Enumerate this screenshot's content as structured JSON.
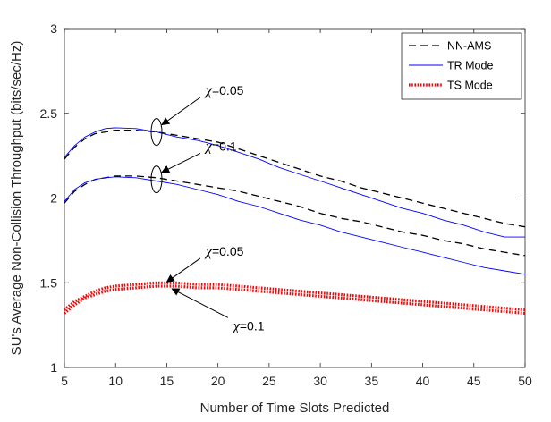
{
  "chart_data": {
    "type": "line",
    "title": "",
    "xlabel": "Number of Time Slots Predicted",
    "ylabel": "SU's Average Non-Collision Throughput (bits/sec/Hz)",
    "xlim": [
      5,
      50
    ],
    "ylim": [
      1,
      3
    ],
    "xticks": [
      "5",
      "10",
      "15",
      "20",
      "25",
      "30",
      "35",
      "40",
      "45",
      "50"
    ],
    "yticks": [
      "1",
      "1.5",
      "2",
      "2.5",
      "3"
    ],
    "grid": false,
    "legend_position": "top-right",
    "legend": [
      {
        "label": "NN-AMS",
        "color": "#000000",
        "style": "dashed"
      },
      {
        "label": "TR Mode",
        "color": "#0000ff",
        "style": "solid"
      },
      {
        "label": "TS Mode",
        "color": "#ff0000",
        "style": "dotted"
      }
    ],
    "series": [
      {
        "name": "NN-AMS",
        "group": "χ=0.05",
        "color": "#000000",
        "style": "dashed",
        "x": [
          5,
          6,
          7,
          8,
          9,
          10,
          12,
          14,
          15,
          16,
          18,
          20,
          22,
          24,
          26,
          28,
          30,
          32,
          34,
          36,
          38,
          40,
          42,
          44,
          46,
          48,
          50
        ],
        "y": [
          2.23,
          2.3,
          2.35,
          2.38,
          2.39,
          2.4,
          2.4,
          2.39,
          2.38,
          2.37,
          2.35,
          2.33,
          2.29,
          2.25,
          2.21,
          2.17,
          2.13,
          2.1,
          2.06,
          2.03,
          2.0,
          1.97,
          1.94,
          1.91,
          1.88,
          1.85,
          1.83
        ]
      },
      {
        "name": "TR Mode",
        "group": "χ=0.05",
        "color": "#0000ff",
        "style": "solid",
        "x": [
          5,
          6,
          7,
          8,
          9,
          10,
          12,
          14,
          16,
          18,
          20,
          22,
          24,
          26,
          28,
          30,
          32,
          34,
          36,
          38,
          40,
          42,
          44,
          46,
          48,
          50
        ],
        "y": [
          2.24,
          2.31,
          2.36,
          2.39,
          2.41,
          2.415,
          2.41,
          2.39,
          2.36,
          2.34,
          2.31,
          2.27,
          2.23,
          2.18,
          2.14,
          2.1,
          2.06,
          2.02,
          1.98,
          1.94,
          1.91,
          1.87,
          1.84,
          1.8,
          1.77,
          1.77
        ]
      },
      {
        "name": "NN-AMS",
        "group": "χ=0.1",
        "color": "#000000",
        "style": "dashed",
        "x": [
          5,
          6,
          7,
          8,
          9,
          10,
          12,
          14,
          16,
          18,
          20,
          22,
          24,
          26,
          28,
          30,
          32,
          34,
          36,
          38,
          40,
          42,
          44,
          46,
          48,
          50
        ],
        "y": [
          1.97,
          2.04,
          2.08,
          2.11,
          2.12,
          2.13,
          2.13,
          2.12,
          2.1,
          2.08,
          2.06,
          2.04,
          2.01,
          1.98,
          1.95,
          1.91,
          1.88,
          1.86,
          1.83,
          1.8,
          1.78,
          1.75,
          1.73,
          1.7,
          1.68,
          1.66
        ]
      },
      {
        "name": "TR Mode",
        "group": "χ=0.1",
        "color": "#0000ff",
        "style": "solid",
        "x": [
          5,
          6,
          7,
          8,
          9,
          10,
          12,
          14,
          16,
          18,
          20,
          22,
          24,
          26,
          28,
          30,
          32,
          34,
          36,
          38,
          40,
          42,
          44,
          46,
          48,
          50
        ],
        "y": [
          1.98,
          2.05,
          2.09,
          2.11,
          2.12,
          2.125,
          2.12,
          2.1,
          2.08,
          2.05,
          2.02,
          1.98,
          1.95,
          1.91,
          1.87,
          1.84,
          1.8,
          1.77,
          1.74,
          1.71,
          1.68,
          1.65,
          1.62,
          1.59,
          1.57,
          1.55
        ]
      },
      {
        "name": "TS Mode",
        "group": "χ=0.05",
        "color": "#ff0000",
        "style": "dotted",
        "x": [
          5,
          6,
          7,
          8,
          9,
          10,
          12,
          14,
          15,
          16,
          18,
          20,
          22,
          24,
          26,
          28,
          30,
          32,
          34,
          36,
          38,
          40,
          42,
          44,
          46,
          48,
          50
        ],
        "y": [
          1.34,
          1.39,
          1.42,
          1.45,
          1.47,
          1.48,
          1.49,
          1.5,
          1.5,
          1.5,
          1.49,
          1.49,
          1.48,
          1.47,
          1.46,
          1.45,
          1.44,
          1.43,
          1.42,
          1.41,
          1.4,
          1.39,
          1.38,
          1.37,
          1.36,
          1.35,
          1.34
        ]
      },
      {
        "name": "TS Mode",
        "group": "χ=0.1",
        "color": "#ff0000",
        "style": "dotted",
        "x": [
          5,
          6,
          7,
          8,
          9,
          10,
          12,
          14,
          15,
          16,
          18,
          20,
          22,
          24,
          26,
          28,
          30,
          32,
          34,
          36,
          38,
          40,
          42,
          44,
          46,
          48,
          50
        ],
        "y": [
          1.32,
          1.37,
          1.41,
          1.43,
          1.45,
          1.46,
          1.47,
          1.48,
          1.48,
          1.48,
          1.47,
          1.47,
          1.46,
          1.45,
          1.44,
          1.43,
          1.42,
          1.41,
          1.4,
          1.39,
          1.38,
          1.37,
          1.36,
          1.35,
          1.34,
          1.33,
          1.32
        ]
      }
    ],
    "annotations": [
      {
        "label": "χ=0.05",
        "symbol": "χ",
        "value": "=0.05",
        "target": [
          14,
          2.39
        ],
        "text_at": [
          18.8,
          2.61
        ],
        "ellipse": true
      },
      {
        "label": "χ=0.1",
        "symbol": "χ",
        "value": "=0.1",
        "target": [
          14,
          2.11
        ],
        "text_at": [
          18.8,
          2.28
        ],
        "ellipse": true
      },
      {
        "label": "χ=0.05",
        "symbol": "χ",
        "value": "=0.05",
        "target": [
          15,
          1.505
        ],
        "text_at": [
          18.8,
          1.66
        ],
        "ellipse": false
      },
      {
        "label": "χ=0.1",
        "symbol": "χ",
        "value": "=0.1",
        "target": [
          15.5,
          1.465
        ],
        "text_at": [
          21.5,
          1.22
        ],
        "ellipse": false
      }
    ]
  }
}
